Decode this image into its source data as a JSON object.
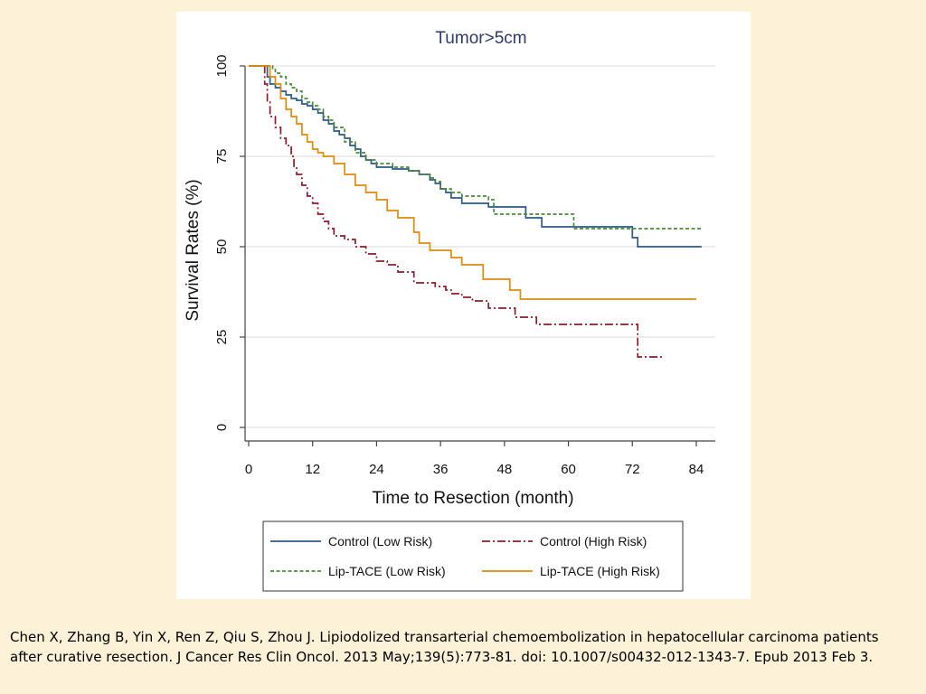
{
  "citation": "Chen X, Zhang B, Yin X, Ren Z, Qiu S, Zhou J. Lipiodolized transarterial chemoembolization in hepatocellular carcinoma patients after curative resection. J Cancer Res Clin Oncol. 2013 May;139(5):773-81. doi: 10.1007/s00432-012-1343-7. Epub 2013 Feb 3.",
  "chart_data": {
    "type": "line",
    "step": true,
    "title": "Tumor>5cm",
    "xlabel": "Time to Resection (month)",
    "ylabel": "Survival Rates (%)",
    "xlim": [
      0,
      84
    ],
    "ylim": [
      0,
      100
    ],
    "xticks": [
      0,
      12,
      24,
      36,
      48,
      60,
      72,
      84
    ],
    "yticks": [
      0,
      25,
      50,
      75,
      100
    ],
    "grid": true,
    "legend_position": "bottom",
    "series": [
      {
        "name": "Control (Low Risk)",
        "color": "#2c5a85",
        "dash": "solid",
        "x": [
          0,
          3.5,
          4,
          5,
          6,
          7,
          8,
          9,
          10,
          11,
          12,
          13,
          14,
          15,
          16,
          17,
          18,
          19,
          20,
          21,
          22,
          23,
          24,
          27,
          30,
          32,
          34,
          35,
          36,
          37,
          38,
          40,
          45,
          48,
          52,
          55,
          60,
          72,
          73,
          85
        ],
        "y": [
          100,
          97,
          95,
          94,
          93,
          92,
          91,
          90.5,
          89.5,
          89,
          88,
          87,
          85,
          84,
          82,
          81,
          80,
          78,
          77,
          75,
          74,
          73,
          72,
          71.5,
          71,
          70,
          68.5,
          67.5,
          66,
          65,
          63.5,
          62,
          61,
          61,
          58,
          55.5,
          55.5,
          52.5,
          50,
          50
        ]
      },
      {
        "name": "Control (High Risk)",
        "color": "#8c1c2c",
        "dash": "dashdot",
        "x": [
          0,
          3,
          3.5,
          4,
          5,
          6,
          7,
          8,
          8.5,
          9,
          10,
          11,
          12,
          13,
          14,
          15,
          16,
          18,
          20,
          22,
          24,
          26,
          28,
          31,
          35,
          37,
          38,
          40,
          42,
          45,
          50,
          54,
          60,
          70,
          73,
          78
        ],
        "y": [
          100,
          95,
          90,
          86,
          83,
          80,
          78,
          75,
          72,
          70,
          67,
          64,
          62,
          59,
          57,
          55,
          53,
          52,
          50,
          48,
          46,
          45,
          43,
          40,
          39,
          38,
          37,
          36,
          35,
          33,
          30.5,
          28.5,
          28.5,
          28.5,
          19.5,
          19.5
        ]
      },
      {
        "name": "Lip-TACE (Low Risk)",
        "color": "#4a8a3a",
        "dash": "dashed",
        "x": [
          0,
          4.5,
          5,
          6,
          7,
          8,
          9,
          10,
          11,
          12,
          13,
          14,
          15,
          16,
          18,
          20,
          22,
          24,
          27,
          30,
          32,
          34,
          35,
          36,
          38,
          40,
          45,
          46,
          55,
          60,
          61,
          85
        ],
        "y": [
          100,
          99,
          98,
          97,
          95,
          94,
          93,
          91,
          90,
          89,
          88,
          86,
          85,
          83,
          79,
          76,
          74,
          73,
          72,
          71,
          70,
          69,
          68,
          66,
          65,
          64,
          63,
          59,
          59,
          59,
          55,
          55
        ]
      },
      {
        "name": "Lip-TACE (High Risk)",
        "color": "#e08a0c",
        "dash": "solid",
        "x": [
          0,
          4,
          5,
          6,
          7,
          8,
          9,
          10,
          11,
          12,
          13,
          14,
          16,
          18,
          20,
          22,
          24,
          26,
          28,
          31,
          32,
          34,
          36,
          38,
          40,
          44,
          49,
          51,
          60,
          70,
          84
        ],
        "y": [
          100,
          97,
          95,
          91,
          88,
          86,
          84,
          81,
          79,
          77,
          76,
          75,
          73,
          70,
          67,
          65,
          63,
          60,
          58,
          54,
          51,
          49,
          49,
          47,
          45,
          41,
          38,
          35.5,
          35.5,
          35.5,
          35.5
        ]
      }
    ]
  }
}
